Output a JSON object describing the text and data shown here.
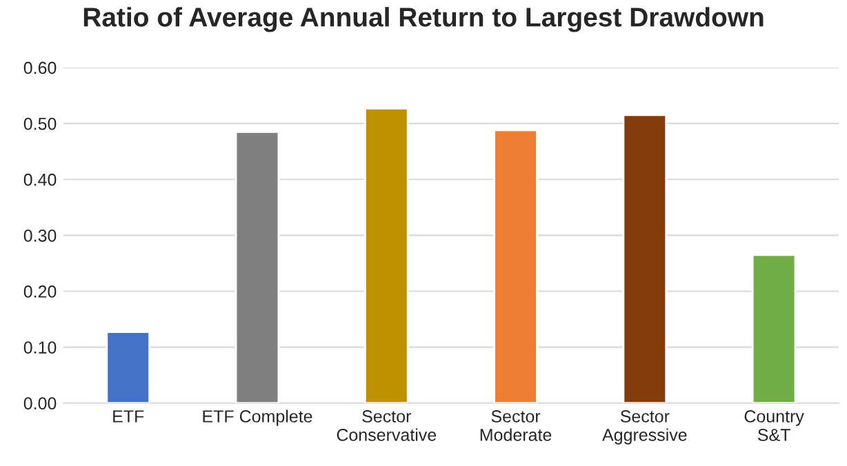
{
  "chart_data": {
    "type": "bar",
    "title": "Ratio of Average Annual Return to Largest Drawdown",
    "categories": [
      "ETF",
      "ETF Complete",
      "Sector\nConservative",
      "Sector\nModerate",
      "Sector\nAggressive",
      "Country\nS&T"
    ],
    "values": [
      0.127,
      0.485,
      0.527,
      0.488,
      0.515,
      0.265
    ],
    "colors": [
      "#4472c4",
      "#7f7f7f",
      "#bf9000",
      "#ed7d31",
      "#843c0c",
      "#70ad47"
    ],
    "ylim": [
      0,
      0.6
    ],
    "yticks": [
      {
        "value": 0,
        "label": "0.00"
      },
      {
        "value": 0.1,
        "label": "0.10"
      },
      {
        "value": 0.2,
        "label": "0.20"
      },
      {
        "value": 0.3,
        "label": "0.30"
      },
      {
        "value": 0.4,
        "label": "0.40"
      },
      {
        "value": 0.5,
        "label": "0.50"
      },
      {
        "value": 0.6,
        "label": "0.60"
      }
    ],
    "grid": "y"
  }
}
